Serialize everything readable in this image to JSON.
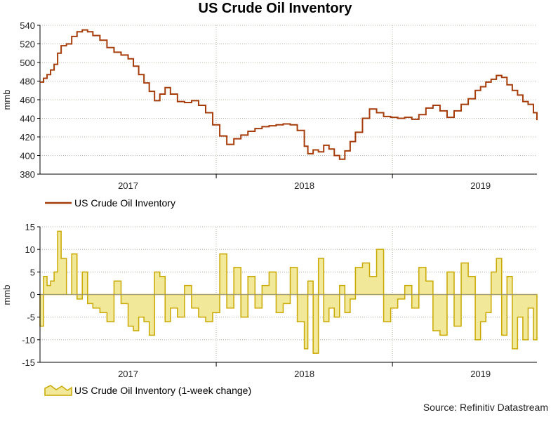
{
  "title": "US Crude Oil Inventory",
  "source": "Source: Refinitiv Datastream",
  "colors": {
    "line": "#a63c0a",
    "bar_fill": "#f1e89a",
    "bar_stroke": "#c9a800",
    "grid": "#9aa08a",
    "axis": "#000000"
  },
  "chart_data": [
    {
      "type": "line",
      "title": "US Crude Oil Inventory",
      "ylabel": "mmb",
      "xlabel": "",
      "ylim": [
        380,
        540
      ],
      "yticks": [
        "540",
        "520",
        "500",
        "480",
        "460",
        "440",
        "420",
        "400",
        "380"
      ],
      "xlim": [
        2016.5,
        2019.32
      ],
      "xticks": [
        {
          "label": "2017",
          "x": 2017.0
        },
        {
          "label": "2018",
          "x": 2018.0
        },
        {
          "label": "2019",
          "x": 2019.0
        }
      ],
      "legend": "US Crude Oil Inventory",
      "series": [
        {
          "name": "US Crude Oil Inventory",
          "x": [
            2016.5,
            2016.52,
            2016.54,
            2016.56,
            2016.58,
            2016.6,
            2016.62,
            2016.65,
            2016.68,
            2016.71,
            2016.74,
            2016.77,
            2016.8,
            2016.84,
            2016.88,
            2016.92,
            2016.96,
            2017.0,
            2017.03,
            2017.06,
            2017.09,
            2017.12,
            2017.15,
            2017.18,
            2017.21,
            2017.24,
            2017.28,
            2017.32,
            2017.36,
            2017.4,
            2017.44,
            2017.48,
            2017.52,
            2017.56,
            2017.6,
            2017.64,
            2017.68,
            2017.72,
            2017.76,
            2017.8,
            2017.84,
            2017.88,
            2017.92,
            2017.96,
            2018.0,
            2018.02,
            2018.05,
            2018.08,
            2018.11,
            2018.14,
            2018.17,
            2018.2,
            2018.23,
            2018.26,
            2018.29,
            2018.33,
            2018.37,
            2018.41,
            2018.45,
            2018.49,
            2018.53,
            2018.57,
            2018.61,
            2018.65,
            2018.69,
            2018.73,
            2018.77,
            2018.81,
            2018.85,
            2018.89,
            2018.93,
            2018.97,
            2019.0,
            2019.03,
            2019.06,
            2019.09,
            2019.12,
            2019.15,
            2019.18,
            2019.21,
            2019.24,
            2019.27,
            2019.3,
            2019.32
          ],
          "values": [
            479,
            483,
            487,
            492,
            498,
            510,
            518,
            520,
            528,
            533,
            535,
            533,
            529,
            524,
            516,
            511,
            508,
            504,
            496,
            487,
            478,
            469,
            459,
            466,
            473,
            466,
            458,
            457,
            459,
            454,
            446,
            433,
            421,
            412,
            418,
            422,
            426,
            429,
            431,
            432,
            433,
            434,
            433,
            427,
            410,
            402,
            406,
            404,
            411,
            407,
            400,
            396,
            405,
            415,
            425,
            440,
            450,
            446,
            442,
            441,
            440,
            441,
            439,
            444,
            451,
            454,
            448,
            441,
            448,
            455,
            461,
            470,
            474,
            479,
            482,
            486,
            484,
            476,
            470,
            465,
            458,
            455,
            446,
            438
          ]
        }
      ]
    },
    {
      "type": "area",
      "title": "",
      "ylabel": "mmb",
      "xlabel": "",
      "ylim": [
        -15,
        15
      ],
      "yticks": [
        "15",
        "10",
        "5",
        "0",
        "-5",
        "-10",
        "-15"
      ],
      "xlim": [
        2016.5,
        2019.32
      ],
      "xticks": [
        {
          "label": "2017",
          "x": 2017.0
        },
        {
          "label": "2018",
          "x": 2018.0
        },
        {
          "label": "2019",
          "x": 2019.0
        }
      ],
      "legend": "US Crude Oil Inventory (1-week change)",
      "series": [
        {
          "name": "US Crude Oil Inventory (1-week change)",
          "x": [
            2016.5,
            2016.52,
            2016.54,
            2016.56,
            2016.58,
            2016.6,
            2016.62,
            2016.65,
            2016.68,
            2016.71,
            2016.74,
            2016.77,
            2016.8,
            2016.84,
            2016.88,
            2016.92,
            2016.96,
            2017.0,
            2017.03,
            2017.06,
            2017.09,
            2017.12,
            2017.15,
            2017.18,
            2017.21,
            2017.24,
            2017.28,
            2017.32,
            2017.36,
            2017.4,
            2017.44,
            2017.48,
            2017.52,
            2017.56,
            2017.6,
            2017.64,
            2017.68,
            2017.72,
            2017.76,
            2017.8,
            2017.84,
            2017.88,
            2017.92,
            2017.96,
            2018.0,
            2018.02,
            2018.05,
            2018.08,
            2018.11,
            2018.14,
            2018.17,
            2018.2,
            2018.23,
            2018.26,
            2018.29,
            2018.33,
            2018.37,
            2018.41,
            2018.45,
            2018.49,
            2018.53,
            2018.57,
            2018.61,
            2018.65,
            2018.69,
            2018.73,
            2018.77,
            2018.81,
            2018.85,
            2018.89,
            2018.93,
            2018.97,
            2019.0,
            2019.03,
            2019.06,
            2019.09,
            2019.12,
            2019.15,
            2019.18,
            2019.21,
            2019.24,
            2019.27,
            2019.3,
            2019.32
          ],
          "values": [
            -7,
            4,
            2,
            3,
            5,
            14,
            8,
            0,
            9,
            -1,
            5,
            -2,
            -3,
            -4,
            -6,
            3,
            -2,
            -7,
            -8,
            -5,
            -6,
            -9,
            5,
            4,
            -6,
            -3,
            -5,
            2,
            -3,
            -5,
            -6,
            -4,
            9,
            -3,
            6,
            -5,
            4,
            -3,
            2,
            5,
            -4,
            -2,
            6,
            -6,
            -12,
            3,
            -13,
            8,
            -6,
            -3,
            -5,
            2,
            -4,
            -1,
            6,
            7,
            4,
            10,
            -6,
            -3,
            -1,
            2,
            -3,
            6,
            3,
            -8,
            -9,
            5,
            -7,
            7,
            4,
            -10,
            -6,
            -4,
            5,
            8,
            -9,
            4,
            -12,
            -5,
            -10,
            -3,
            -10,
            -9
          ]
        }
      ]
    }
  ]
}
